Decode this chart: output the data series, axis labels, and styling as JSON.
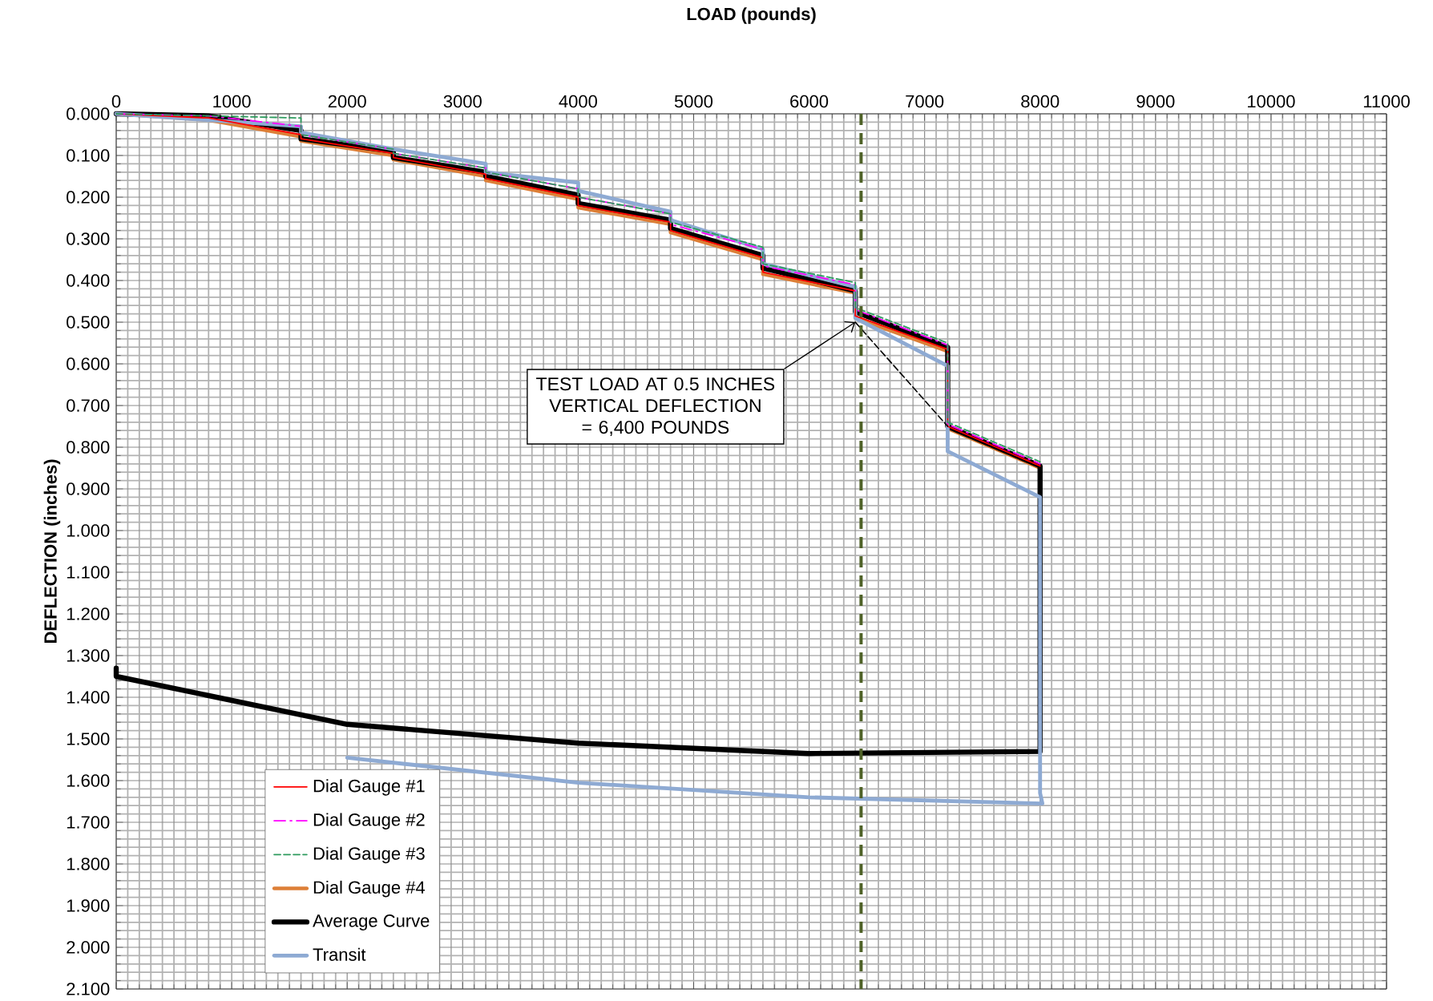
{
  "chart_data": {
    "type": "line",
    "xlabel": "LOAD (pounds)",
    "ylabel": "DEFLECTION (inches)",
    "xlim": [
      0,
      11000
    ],
    "xticks": [
      0,
      1000,
      2000,
      3000,
      4000,
      5000,
      6000,
      7000,
      8000,
      9000,
      10000,
      11000
    ],
    "ylim": [
      2.1,
      0
    ],
    "yticks": [
      {
        "value": 0,
        "label": "0.000"
      },
      {
        "value": 0.1,
        "label": "0.100"
      },
      {
        "value": 0.2,
        "label": "0.200"
      },
      {
        "value": 0.3,
        "label": "0.300"
      },
      {
        "value": 0.4,
        "label": "0.400"
      },
      {
        "value": 0.5,
        "label": "0.500"
      },
      {
        "value": 0.6,
        "label": "0.600"
      },
      {
        "value": 0.7,
        "label": "0.700"
      },
      {
        "value": 0.8,
        "label": "0.800"
      },
      {
        "value": 0.9,
        "label": "0.900"
      },
      {
        "value": 1.0,
        "label": "1.000"
      },
      {
        "value": 1.1,
        "label": "1.100"
      },
      {
        "value": 1.2,
        "label": "1.200"
      },
      {
        "value": 1.3,
        "label": "1.300"
      },
      {
        "value": 1.4,
        "label": "1.400"
      },
      {
        "value": 1.5,
        "label": "1.500"
      },
      {
        "value": 1.6,
        "label": "1.600"
      },
      {
        "value": 1.7,
        "label": "1.700"
      },
      {
        "value": 1.8,
        "label": "1.800"
      },
      {
        "value": 1.9,
        "label": "1.900"
      },
      {
        "value": 2.0,
        "label": "2.000"
      },
      {
        "value": 2.1,
        "label": "2.100"
      }
    ],
    "grid": true,
    "legend": "bottom left",
    "series": [
      {
        "name": "Dial Gauge #1",
        "color": "#ff0000",
        "line_style": "solid",
        "x": [
          0,
          800,
          1600,
          1600,
          2400,
          2400,
          3200,
          3200,
          4000,
          4000,
          4800,
          4800,
          5600,
          5600,
          6400,
          6400,
          7200,
          7200,
          8000
        ],
        "values": [
          0,
          0.01,
          0.05,
          0.06,
          0.095,
          0.105,
          0.145,
          0.155,
          0.2,
          0.22,
          0.26,
          0.28,
          0.345,
          0.38,
          0.425,
          0.485,
          0.565,
          0.75,
          0.845
        ]
      },
      {
        "name": "Dial Gauge #2",
        "color": "#ff00ff",
        "line_style": "dashdot",
        "x": [
          0,
          800,
          1600,
          1600,
          2400,
          2400,
          3200,
          3200,
          4000,
          4000,
          4800,
          4800,
          5600,
          5600,
          6400,
          6400,
          7200,
          7200,
          8000
        ],
        "values": [
          0,
          0.005,
          0.03,
          0.05,
          0.085,
          0.095,
          0.13,
          0.14,
          0.18,
          0.2,
          0.24,
          0.265,
          0.325,
          0.365,
          0.41,
          0.47,
          0.555,
          0.745,
          0.84
        ]
      },
      {
        "name": "Dial Gauge #3",
        "color": "#2e9b5e",
        "line_style": "dashed",
        "x": [
          0,
          800,
          1600,
          1600,
          2400,
          2400,
          3200,
          3200,
          4000,
          4000,
          4800,
          4800,
          5600,
          5600,
          6400,
          6400,
          7200,
          7200,
          8000
        ],
        "values": [
          0,
          0.005,
          0.01,
          0.05,
          0.085,
          0.095,
          0.13,
          0.14,
          0.18,
          0.2,
          0.24,
          0.26,
          0.32,
          0.36,
          0.405,
          0.465,
          0.55,
          0.74,
          0.835
        ]
      },
      {
        "name": "Dial Gauge #4",
        "color": "#dd7f37",
        "line_style": "solid",
        "x": [
          0,
          800,
          1600,
          1600,
          2400,
          2400,
          3200,
          3200,
          4000,
          4000,
          4800,
          4800,
          5600,
          5600,
          6400,
          6400,
          7200,
          7200,
          8000,
          8000
        ],
        "values": [
          0,
          0.015,
          0.055,
          0.065,
          0.1,
          0.11,
          0.15,
          0.16,
          0.205,
          0.225,
          0.265,
          0.285,
          0.35,
          0.385,
          0.43,
          0.49,
          0.57,
          0.755,
          0.85,
          1.52
        ]
      },
      {
        "name": "Average Curve",
        "color": "#000000",
        "line_style": "solid",
        "x": [
          0,
          800,
          1600,
          1600,
          2400,
          2400,
          3200,
          3200,
          4000,
          4000,
          4800,
          4800,
          5600,
          5600,
          6400,
          6400,
          7200,
          7200,
          8000,
          8000,
          6000,
          4000,
          2000,
          0,
          0
        ],
        "values": [
          0,
          0.005,
          0.04,
          0.06,
          0.09,
          0.105,
          0.14,
          0.15,
          0.195,
          0.215,
          0.255,
          0.275,
          0.34,
          0.37,
          0.425,
          0.475,
          0.56,
          0.75,
          0.845,
          1.53,
          1.535,
          1.51,
          1.465,
          1.35,
          1.33
        ]
      },
      {
        "name": "Transit",
        "color": "#8eaad3",
        "line_style": "solid",
        "x": [
          0,
          1600,
          1600,
          2400,
          3200,
          3200,
          4000,
          4000,
          4800,
          4800,
          5600,
          5600,
          6400,
          6400,
          7200,
          7200,
          8000,
          8000,
          8020,
          6000,
          4000,
          2000
        ],
        "values": [
          0,
          0.03,
          0.045,
          0.085,
          0.12,
          0.14,
          0.165,
          0.185,
          0.235,
          0.255,
          0.325,
          0.36,
          0.415,
          0.49,
          0.605,
          0.81,
          0.92,
          1.63,
          1.655,
          1.64,
          1.605,
          1.545
        ]
      },
      {
        "color": "#000000",
        "line_style": "dashed",
        "x": [
          6400,
          7200
        ],
        "values": [
          0.5,
          0.75
        ]
      }
    ],
    "ref_lines": [
      {
        "axis": "x",
        "value": 6450,
        "color": "#4f6228",
        "line_style": "dashed"
      }
    ],
    "annotations": [
      {
        "text": "TEST LOAD AT 0.5 INCHES VERTICAL DEFLECTION = 6,400 POUNDS",
        "x": 6400,
        "y": 0.5
      }
    ]
  }
}
